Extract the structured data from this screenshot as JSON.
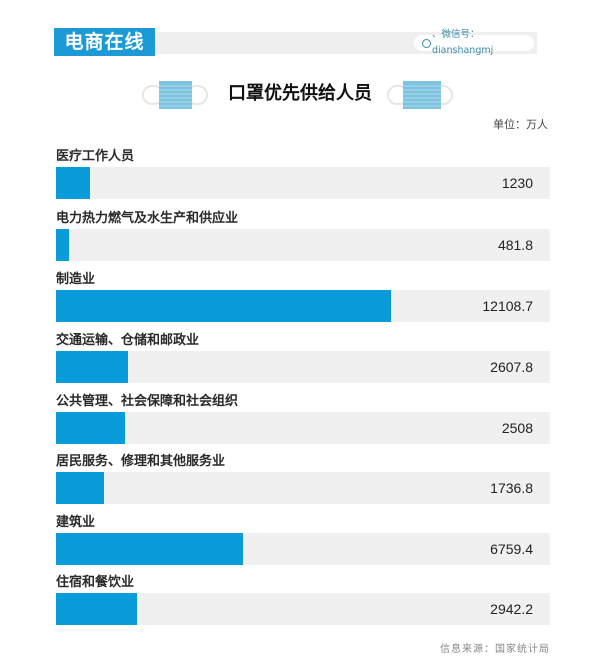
{
  "header": {
    "brand": "电商在线",
    "wechat_label": "、微信号：dianshangmj",
    "colors": {
      "brand_bg": "#1b9ad6",
      "strip_bg": "#efefef"
    }
  },
  "title": "口罩优先供给人员",
  "icons": {
    "left": "face-mask-icon",
    "right": "face-mask-icon"
  },
  "unit": "单位：万人",
  "source": "信息来源：国家统计局",
  "chart_data": {
    "type": "bar",
    "orientation": "horizontal",
    "title": "口罩优先供给人员",
    "unit": "万人",
    "categories": [
      "医疗工作人员",
      "电力热力燃气及水生产和供应业",
      "制造业",
      "交通运输、仓储和邮政业",
      "公共管理、社会保障和社会组织",
      "居民服务、修理和其他服务业",
      "建筑业",
      "住宿和餐饮业"
    ],
    "values": [
      1230,
      481.8,
      12108.7,
      2607.8,
      2508,
      1736.8,
      6759.4,
      2942.2
    ],
    "value_labels": [
      "1230",
      "481.8",
      "12108.7",
      "2607.8",
      "2508",
      "1736.8",
      "6759.4",
      "2942.2"
    ],
    "bar_color": "#0a9bdb",
    "track_color": "#f0f0f0",
    "xlim": [
      0,
      17860
    ],
    "grid": false,
    "legend": false,
    "source": "信息来源：国家统计局"
  }
}
